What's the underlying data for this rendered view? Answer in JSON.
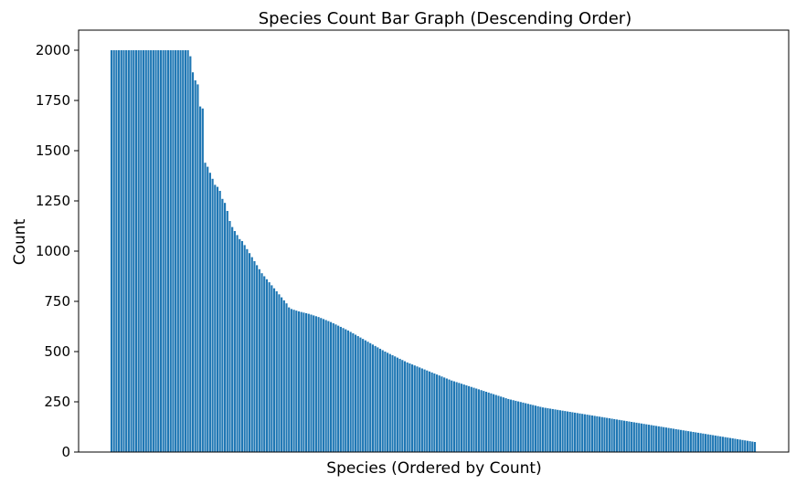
{
  "chart_data": {
    "type": "bar",
    "title": "Species Count Bar Graph (Descending Order)",
    "xlabel": "Species (Ordered by Count)",
    "ylabel": "Count",
    "ylim": [
      0,
      2100
    ],
    "yticks": [
      "0",
      "250",
      "500",
      "750",
      "1000",
      "1250",
      "1500",
      "1750",
      "2000"
    ],
    "x_tick_labels_shown": false,
    "grid": false,
    "legend": "none",
    "bar_color": "#1f77b4",
    "series": [
      {
        "values": [
          2000,
          2000,
          2000,
          2000,
          2000,
          2000,
          2000,
          2000,
          2000,
          2000,
          2000,
          2000,
          2000,
          2000,
          2000,
          2000,
          2000,
          2000,
          2000,
          2000,
          2000,
          2000,
          2000,
          2000,
          2000,
          2000,
          2000,
          2000,
          2000,
          2000,
          2000,
          2000,
          1970,
          1890,
          1850,
          1830,
          1720,
          1710,
          1440,
          1420,
          1390,
          1360,
          1330,
          1320,
          1300,
          1260,
          1240,
          1200,
          1150,
          1120,
          1100,
          1080,
          1060,
          1050,
          1030,
          1010,
          990,
          970,
          950,
          930,
          910,
          890,
          875,
          860,
          845,
          830,
          815,
          800,
          785,
          770,
          755,
          740,
          720,
          712,
          708,
          704,
          700,
          697,
          694,
          691,
          688,
          684,
          680,
          676,
          672,
          667,
          662,
          657,
          652,
          647,
          641,
          635,
          629,
          623,
          617,
          611,
          605,
          598,
          591,
          584,
          577,
          570,
          563,
          556,
          549,
          542,
          535,
          528,
          521,
          514,
          507,
          500,
          494,
          488,
          482,
          476,
          470,
          464,
          458,
          452,
          446,
          441,
          436,
          431,
          426,
          421,
          416,
          411,
          406,
          401,
          396,
          391,
          386,
          381,
          376,
          371,
          366,
          361,
          356,
          352,
          348,
          344,
          340,
          336,
          332,
          328,
          324,
          320,
          316,
          312,
          308,
          304,
          300,
          296,
          292,
          288,
          284,
          280,
          276,
          272,
          268,
          264,
          261,
          258,
          255,
          252,
          249,
          246,
          243,
          240,
          237,
          234,
          231,
          228,
          225,
          222,
          220,
          218,
          216,
          214,
          212,
          210,
          208,
          206,
          204,
          202,
          200,
          198,
          196,
          194,
          192,
          190,
          188,
          186,
          184,
          182,
          180,
          178,
          176,
          174,
          172,
          170,
          168,
          166,
          164,
          162,
          160,
          158,
          156,
          154,
          152,
          150,
          148,
          146,
          144,
          142,
          140,
          138,
          136,
          134,
          132,
          130,
          128,
          126,
          124,
          122,
          120,
          118,
          116,
          114,
          112,
          110,
          108,
          106,
          104,
          102,
          100,
          98,
          96,
          94,
          92,
          90,
          88,
          86,
          84,
          82,
          80,
          78,
          76,
          74,
          72,
          70,
          68,
          66,
          64,
          62,
          60,
          58,
          56,
          54,
          52,
          50
        ]
      }
    ]
  }
}
